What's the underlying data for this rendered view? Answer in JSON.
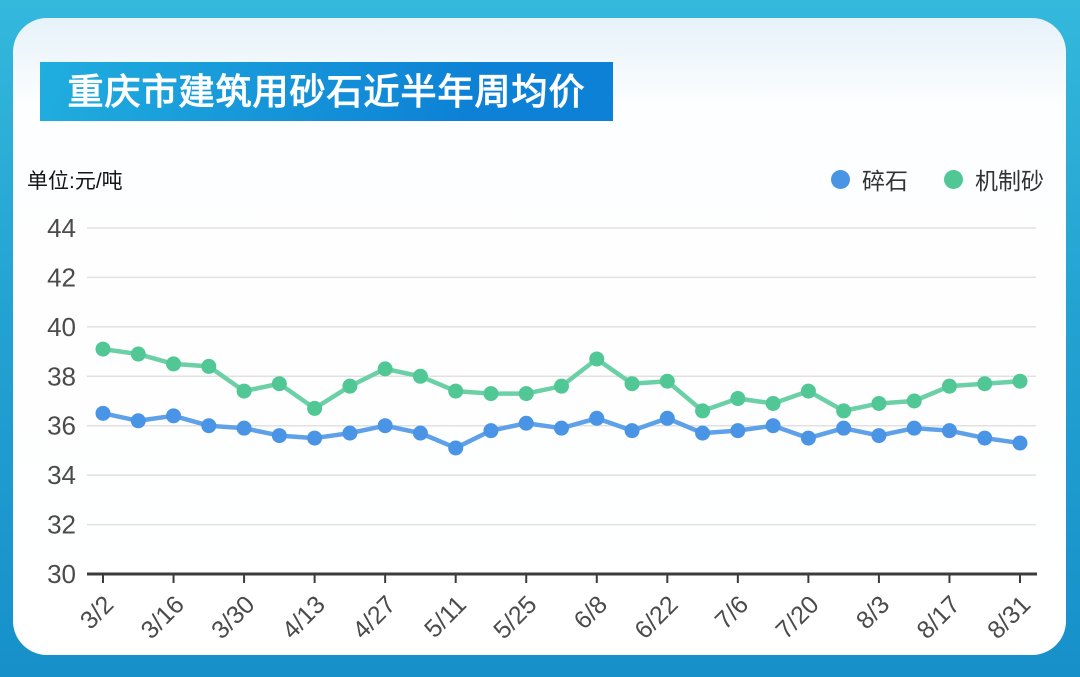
{
  "header": {
    "title": "重庆市建筑用砂石近半年周均价"
  },
  "unit_label": "单位:元/吨",
  "legend": [
    {
      "key": "crushed-stone",
      "label": "碎石",
      "color": "#4a94e6"
    },
    {
      "key": "machine-made-sand",
      "label": "机制砂",
      "color": "#50c795"
    }
  ],
  "colors": {
    "page_bg_top": "#34b8dc",
    "page_bg_bottom": "#1790ca",
    "banner_from": "#20aede",
    "banner_to": "#0d81d5",
    "gridline": "#e1e1e1",
    "axis": "#3c3c3c",
    "tick_label": "#4b4b4b"
  },
  "chart_data": {
    "type": "line",
    "title": "重庆市建筑用砂石近半年周均价",
    "unit": "元/吨",
    "xlabel": "",
    "ylabel": "单位:元/吨",
    "ylim": [
      30,
      44
    ],
    "yticks": [
      30,
      32,
      34,
      36,
      38,
      40,
      42,
      44
    ],
    "grid": true,
    "legend_position": "top-right",
    "x": [
      "3/2",
      "3/9",
      "3/16",
      "3/23",
      "3/30",
      "4/6",
      "4/13",
      "4/20",
      "4/27",
      "5/4",
      "5/11",
      "5/18",
      "5/25",
      "6/1",
      "6/8",
      "6/15",
      "6/22",
      "6/29",
      "7/6",
      "7/13",
      "7/20",
      "7/27",
      "8/3",
      "8/10",
      "8/17",
      "8/24",
      "8/31"
    ],
    "x_tick_labels": [
      "3/2",
      "3/16",
      "3/30",
      "4/13",
      "4/27",
      "5/11",
      "5/25",
      "6/8",
      "6/22",
      "7/6",
      "7/20",
      "8/3",
      "8/17",
      "8/31"
    ],
    "series": [
      {
        "name": "碎石",
        "key": "crushed-stone",
        "dot_color": "#4a94e6",
        "line_color": "#5fa1e8",
        "values": [
          36.5,
          36.2,
          36.4,
          36.0,
          35.9,
          35.6,
          35.5,
          35.7,
          36.0,
          35.7,
          35.1,
          35.8,
          36.1,
          35.9,
          36.3,
          35.8,
          36.3,
          35.7,
          35.8,
          36.0,
          35.5,
          35.9,
          35.6,
          35.9,
          35.8,
          35.5,
          35.3
        ]
      },
      {
        "name": "机制砂",
        "key": "machine-made-sand",
        "dot_color": "#50c795",
        "line_color": "#6cd0a7",
        "values": [
          39.1,
          38.9,
          38.5,
          38.4,
          37.4,
          37.7,
          36.7,
          37.6,
          38.3,
          38.0,
          37.4,
          37.3,
          37.3,
          37.6,
          38.7,
          37.7,
          37.8,
          36.6,
          37.1,
          36.9,
          37.4,
          36.6,
          36.9,
          37.0,
          37.6,
          37.7,
          37.8
        ]
      }
    ]
  }
}
